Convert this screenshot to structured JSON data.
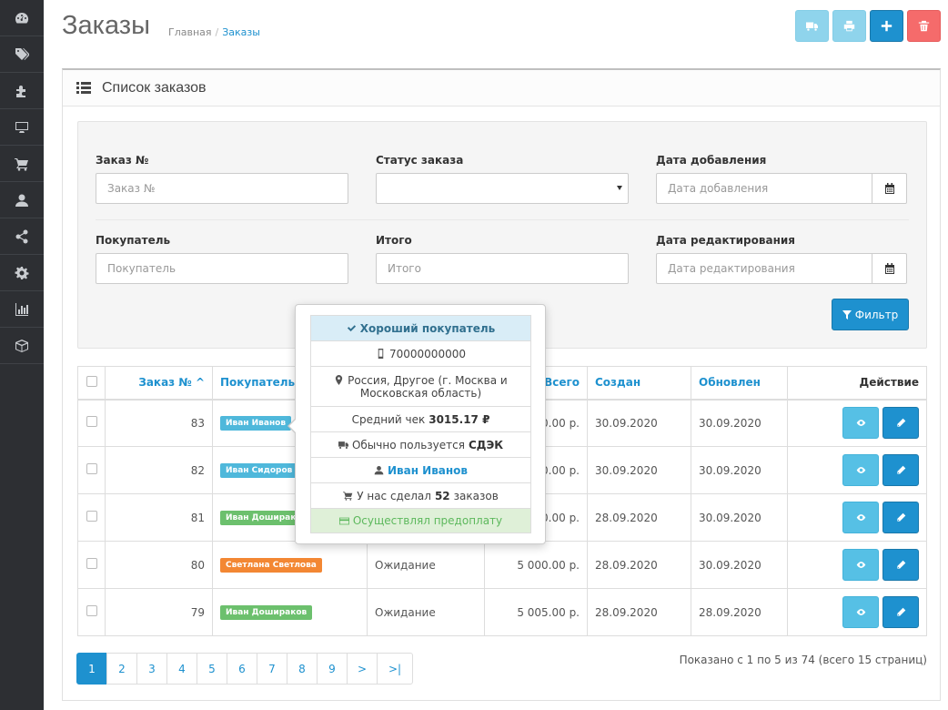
{
  "sidebar": {
    "icons": [
      "dashboard-icon",
      "tags-icon",
      "puzzle-icon",
      "desktop-icon",
      "cart-icon",
      "user-icon",
      "share-icon",
      "gear-icon",
      "chart-icon",
      "cube-icon"
    ]
  },
  "header": {
    "title": "Заказы",
    "breadcrumb": [
      "Главная",
      "Заказы"
    ]
  },
  "panel": {
    "title": "Список заказов"
  },
  "filter": {
    "order_no": {
      "label": "Заказ №",
      "placeholder": "Заказ №"
    },
    "status": {
      "label": "Статус заказа",
      "value": ""
    },
    "date_added": {
      "label": "Дата добавления",
      "placeholder": "Дата добавления"
    },
    "customer": {
      "label": "Покупатель",
      "placeholder": "Покупатель"
    },
    "total": {
      "label": "Итого",
      "placeholder": "Итого"
    },
    "date_modified": {
      "label": "Дата редактирования",
      "placeholder": "Дата редактирования"
    },
    "button": "Фильтр"
  },
  "table": {
    "headers": {
      "order": "Заказ № ^",
      "customer": "Покупатель",
      "status": "",
      "total": "Всего",
      "created": "Создан",
      "updated": "Обновлен",
      "action": "Действие"
    },
    "rows": [
      {
        "id": "83",
        "customer": "Иван Иванов",
        "label": "l-info",
        "status": "",
        "total": "0.00 р.",
        "created": "30.09.2020",
        "updated": "30.09.2020"
      },
      {
        "id": "82",
        "customer": "Иван Сидоров",
        "label": "l-info",
        "status": "",
        "total": "0.00 р.",
        "created": "30.09.2020",
        "updated": "30.09.2020"
      },
      {
        "id": "81",
        "customer": "Иван Дошираков",
        "label": "l-success",
        "status": "",
        "total": "0.00 р.",
        "created": "28.09.2020",
        "updated": "30.09.2020"
      },
      {
        "id": "80",
        "customer": "Светлана Светлова",
        "label": "l-warning",
        "status": "Ожидание",
        "total": "5 000.00 р.",
        "created": "28.09.2020",
        "updated": "30.09.2020"
      },
      {
        "id": "79",
        "customer": "Иван Дошираков",
        "label": "l-success",
        "status": "Ожидание",
        "total": "5 005.00 р.",
        "created": "28.09.2020",
        "updated": "28.09.2020"
      }
    ]
  },
  "pagination": {
    "pages": [
      "1",
      "2",
      "3",
      "4",
      "5",
      "6",
      "7",
      "8",
      "9",
      ">",
      ">|"
    ],
    "info": "Показано с 1 по 5 из 74 (всего 15 страниц)"
  },
  "popover": {
    "head": "Хороший покупатель",
    "phone": "70000000000",
    "address": "Россия, Другое (г. Москва и Московская область)",
    "avg_prefix": "Средний чек",
    "avg_value": "3015.17 ₽",
    "delivery_prefix": "Обычно пользуется",
    "delivery_value": "СДЭК",
    "name": "Иван Иванов",
    "orders_prefix": "У нас сделал",
    "orders_count": "52",
    "orders_suffix": "заказов",
    "prepaid": "Осуществлял предоплату"
  }
}
